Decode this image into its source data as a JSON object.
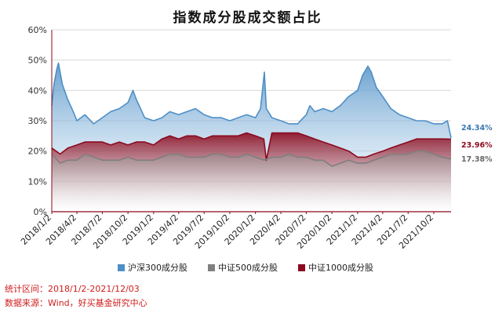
{
  "chart_data": {
    "type": "area",
    "title": "指数成分股成交额占比",
    "y_ticks": [
      "0%",
      "10%",
      "20%",
      "30%",
      "40%",
      "50%",
      "60%"
    ],
    "ylim": [
      0,
      60
    ],
    "x_ticks": [
      "2018/1/2",
      "2018/4/2",
      "2018/7/2",
      "2018/10/2",
      "2019/1/2",
      "2019/4/2",
      "2019/7/2",
      "2019/10/2",
      "2020/1/2",
      "2020/4/2",
      "2020/7/2",
      "2020/10/2",
      "2021/1/2",
      "2021/4/2",
      "2021/7/2",
      "2021/10/2"
    ],
    "x_range": [
      "2018/1/2",
      "2021/12/03"
    ],
    "grid": true,
    "legend_position": "bottom",
    "series": [
      {
        "name": "沪深300成分股",
        "color": "#4e8fc6",
        "end_label": "24.34%",
        "points": [
          [
            "2018/1/2",
            35
          ],
          [
            "2018/1/10",
            42
          ],
          [
            "2018/1/20",
            47
          ],
          [
            "2018/1/26",
            49
          ],
          [
            "2018/2/9",
            42
          ],
          [
            "2018/2/28",
            37
          ],
          [
            "2018/3/20",
            33
          ],
          [
            "2018/4/2",
            30
          ],
          [
            "2018/5/1",
            32
          ],
          [
            "2018/6/1",
            29
          ],
          [
            "2018/7/2",
            31
          ],
          [
            "2018/8/1",
            33
          ],
          [
            "2018/9/1",
            34
          ],
          [
            "2018/10/2",
            36
          ],
          [
            "2018/10/20",
            40
          ],
          [
            "2018/11/1",
            37
          ],
          [
            "2018/12/1",
            31
          ],
          [
            "2019/1/2",
            30
          ],
          [
            "2019/2/1",
            31
          ],
          [
            "2019/3/1",
            33
          ],
          [
            "2019/4/2",
            32
          ],
          [
            "2019/5/1",
            33
          ],
          [
            "2019/6/1",
            34
          ],
          [
            "2019/7/2",
            32
          ],
          [
            "2019/8/1",
            31
          ],
          [
            "2019/9/1",
            31
          ],
          [
            "2019/10/2",
            30
          ],
          [
            "2019/11/1",
            31
          ],
          [
            "2019/12/1",
            32
          ],
          [
            "2020/1/2",
            31
          ],
          [
            "2020/1/20",
            34
          ],
          [
            "2020/2/3",
            46
          ],
          [
            "2020/2/10",
            34
          ],
          [
            "2020/3/1",
            31
          ],
          [
            "2020/4/2",
            30
          ],
          [
            "2020/5/1",
            29
          ],
          [
            "2020/6/1",
            29
          ],
          [
            "2020/7/2",
            32
          ],
          [
            "2020/7/15",
            35
          ],
          [
            "2020/8/1",
            33
          ],
          [
            "2020/9/1",
            34
          ],
          [
            "2020/10/2",
            33
          ],
          [
            "2020/11/1",
            35
          ],
          [
            "2020/12/1",
            38
          ],
          [
            "2021/1/2",
            40
          ],
          [
            "2021/1/20",
            45
          ],
          [
            "2021/2/8",
            48
          ],
          [
            "2021/2/20",
            46
          ],
          [
            "2021/3/10",
            41
          ],
          [
            "2021/4/2",
            38
          ],
          [
            "2021/5/1",
            34
          ],
          [
            "2021/6/1",
            32
          ],
          [
            "2021/7/2",
            31
          ],
          [
            "2021/8/1",
            30
          ],
          [
            "2021/9/1",
            30
          ],
          [
            "2021/10/2",
            29
          ],
          [
            "2021/11/1",
            29
          ],
          [
            "2021/11/20",
            30
          ],
          [
            "2021/12/03",
            24.34
          ]
        ]
      },
      {
        "name": "中证500成分股",
        "color": "#7f7f7f",
        "end_label": "17.38%",
        "points": [
          [
            "2018/1/2",
            19
          ],
          [
            "2018/2/1",
            16
          ],
          [
            "2018/3/1",
            17
          ],
          [
            "2018/4/2",
            17
          ],
          [
            "2018/5/1",
            19
          ],
          [
            "2018/6/1",
            18
          ],
          [
            "2018/7/2",
            17
          ],
          [
            "2018/8/1",
            17
          ],
          [
            "2018/9/1",
            17
          ],
          [
            "2018/10/2",
            18
          ],
          [
            "2018/11/1",
            17
          ],
          [
            "2018/12/1",
            17
          ],
          [
            "2019/1/2",
            17
          ],
          [
            "2019/2/1",
            18
          ],
          [
            "2019/3/1",
            19
          ],
          [
            "2019/4/2",
            19
          ],
          [
            "2019/5/1",
            18
          ],
          [
            "2019/6/1",
            18
          ],
          [
            "2019/7/2",
            18
          ],
          [
            "2019/8/1",
            19
          ],
          [
            "2019/9/1",
            19
          ],
          [
            "2019/10/2",
            18
          ],
          [
            "2019/11/1",
            18
          ],
          [
            "2019/12/1",
            19
          ],
          [
            "2020/1/2",
            18
          ],
          [
            "2020/2/1",
            17
          ],
          [
            "2020/3/1",
            18
          ],
          [
            "2020/4/2",
            18
          ],
          [
            "2020/5/1",
            19
          ],
          [
            "2020/6/1",
            18
          ],
          [
            "2020/7/2",
            18
          ],
          [
            "2020/8/1",
            17
          ],
          [
            "2020/9/1",
            17
          ],
          [
            "2020/10/2",
            15
          ],
          [
            "2020/11/1",
            16
          ],
          [
            "2020/12/1",
            17
          ],
          [
            "2021/1/2",
            16
          ],
          [
            "2021/2/1",
            16
          ],
          [
            "2021/3/1",
            17
          ],
          [
            "2021/4/2",
            18
          ],
          [
            "2021/5/1",
            19
          ],
          [
            "2021/6/1",
            19
          ],
          [
            "2021/7/2",
            19
          ],
          [
            "2021/8/1",
            20
          ],
          [
            "2021/9/1",
            20
          ],
          [
            "2021/10/2",
            19
          ],
          [
            "2021/11/1",
            18
          ],
          [
            "2021/12/03",
            17.38
          ]
        ]
      },
      {
        "name": "中证1000成分股",
        "color": "#8b0a1e",
        "end_label": "23.96%",
        "points": [
          [
            "2018/1/2",
            21
          ],
          [
            "2018/2/1",
            19
          ],
          [
            "2018/3/1",
            21
          ],
          [
            "2018/4/2",
            22
          ],
          [
            "2018/5/1",
            23
          ],
          [
            "2018/6/1",
            23
          ],
          [
            "2018/7/2",
            23
          ],
          [
            "2018/8/1",
            22
          ],
          [
            "2018/9/1",
            23
          ],
          [
            "2018/10/2",
            22
          ],
          [
            "2018/11/1",
            23
          ],
          [
            "2018/12/1",
            23
          ],
          [
            "2019/1/2",
            22
          ],
          [
            "2019/2/1",
            24
          ],
          [
            "2019/3/1",
            25
          ],
          [
            "2019/4/2",
            24
          ],
          [
            "2019/5/1",
            25
          ],
          [
            "2019/6/1",
            25
          ],
          [
            "2019/7/2",
            24
          ],
          [
            "2019/8/1",
            25
          ],
          [
            "2019/9/1",
            25
          ],
          [
            "2019/10/2",
            25
          ],
          [
            "2019/11/1",
            25
          ],
          [
            "2019/12/1",
            26
          ],
          [
            "2020/1/2",
            25
          ],
          [
            "2020/2/1",
            24
          ],
          [
            "2020/2/10",
            17
          ],
          [
            "2020/3/1",
            26
          ],
          [
            "2020/4/2",
            26
          ],
          [
            "2020/5/1",
            26
          ],
          [
            "2020/6/1",
            26
          ],
          [
            "2020/7/2",
            25
          ],
          [
            "2020/8/1",
            24
          ],
          [
            "2020/9/1",
            23
          ],
          [
            "2020/10/2",
            22
          ],
          [
            "2020/11/1",
            21
          ],
          [
            "2020/12/1",
            20
          ],
          [
            "2021/1/2",
            18
          ],
          [
            "2021/2/1",
            18
          ],
          [
            "2021/3/1",
            19
          ],
          [
            "2021/4/2",
            20
          ],
          [
            "2021/5/1",
            21
          ],
          [
            "2021/6/1",
            22
          ],
          [
            "2021/7/2",
            23
          ],
          [
            "2021/8/1",
            24
          ],
          [
            "2021/9/1",
            24
          ],
          [
            "2021/10/2",
            24
          ],
          [
            "2021/11/1",
            24
          ],
          [
            "2021/12/03",
            23.96
          ]
        ]
      }
    ]
  },
  "footnotes": {
    "period": "统计区间：2018/1/2-2021/12/03",
    "source": "数据来源：Wind，好买基金研究中心"
  }
}
